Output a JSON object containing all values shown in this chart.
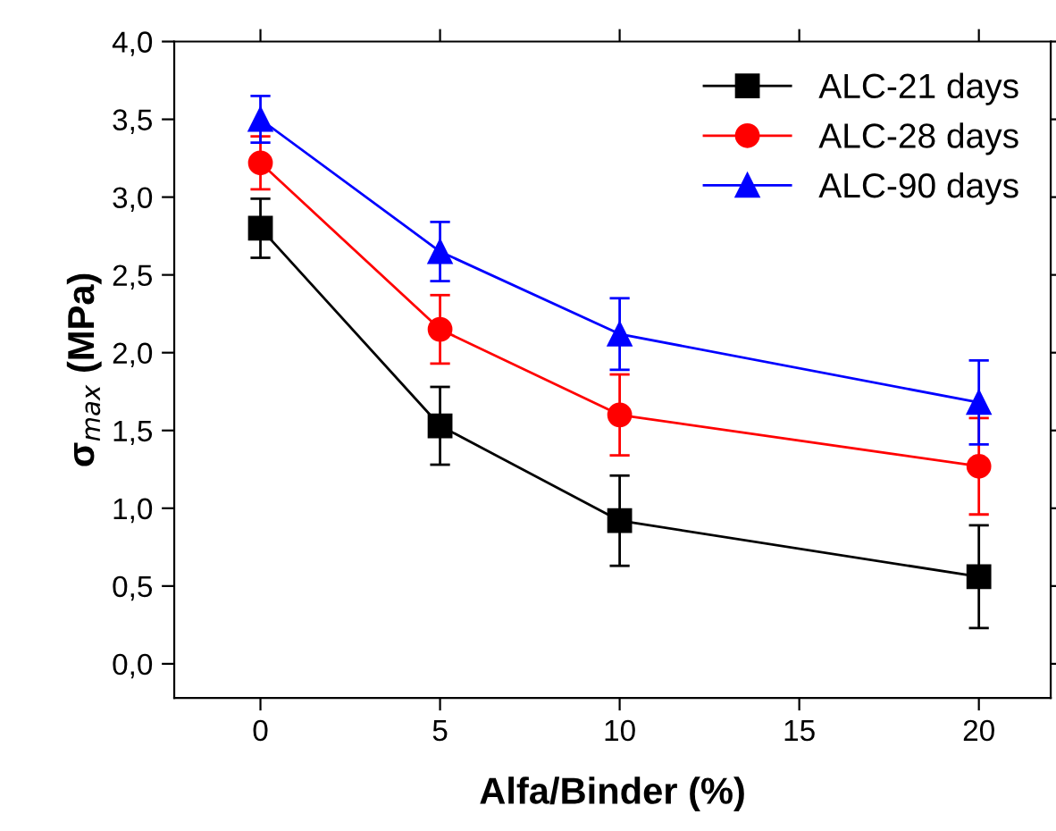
{
  "chart_data": {
    "type": "line",
    "xlabel": "Alfa/Binder (%)",
    "ylabel": "σ$_{max}$ (MPa)",
    "x": [
      0,
      5,
      10,
      20
    ],
    "series": [
      {
        "name": "ALC-21 days",
        "color": "#000000",
        "marker": "square",
        "values": [
          2.8,
          1.53,
          0.92,
          0.56
        ],
        "errors": [
          0.19,
          0.25,
          0.29,
          0.33
        ]
      },
      {
        "name": "ALC-28 days",
        "color": "#ff0000",
        "marker": "circle",
        "values": [
          3.22,
          2.15,
          1.6,
          1.27
        ],
        "errors": [
          0.17,
          0.22,
          0.26,
          0.31
        ]
      },
      {
        "name": "ALC-90 days",
        "color": "#0000ff",
        "marker": "triangle",
        "values": [
          3.5,
          2.65,
          2.12,
          1.68
        ],
        "errors": [
          0.15,
          0.19,
          0.23,
          0.27
        ]
      }
    ],
    "xlim": [
      -2.4,
      22
    ],
    "xticks": [
      0,
      5,
      10,
      15,
      20
    ],
    "ylim": [
      -0.22,
      4.0
    ],
    "yticks": [
      {
        "value": 0,
        "label": "0,0"
      },
      {
        "value": 0.5,
        "label": "0,5"
      },
      {
        "value": 1,
        "label": "1,0"
      },
      {
        "value": 1.5,
        "label": "1,5"
      },
      {
        "value": 2,
        "label": "2,0"
      },
      {
        "value": 2.5,
        "label": "2,5"
      },
      {
        "value": 3,
        "label": "3,0"
      },
      {
        "value": 3.5,
        "label": "3,5"
      },
      {
        "value": 4,
        "label": "4,0"
      }
    ],
    "grid": false,
    "legend": "top right",
    "line_style": "solid"
  }
}
